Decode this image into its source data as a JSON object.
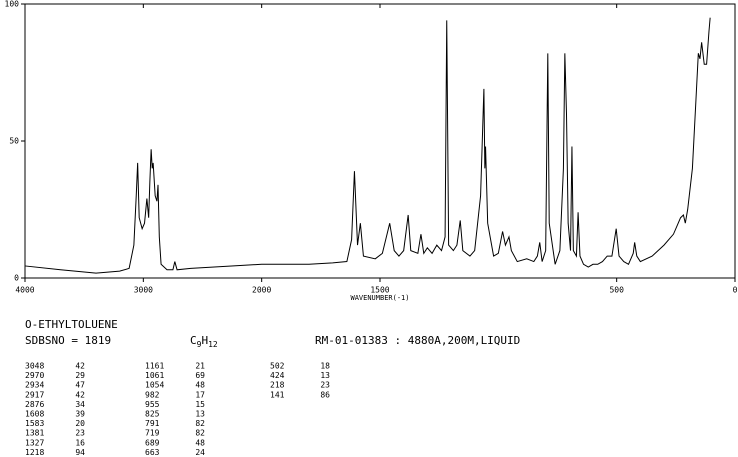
{
  "chart_data": {
    "type": "line",
    "x_label": "WAVENUMBER(-1)",
    "color": "#000000",
    "x": [
      4000,
      3700,
      3400,
      3200,
      3120,
      3080,
      3060,
      3048,
      3035,
      3010,
      2990,
      2970,
      2955,
      2945,
      2934,
      2925,
      2917,
      2900,
      2885,
      2876,
      2865,
      2850,
      2800,
      2750,
      2734,
      2715,
      2600,
      2400,
      2200,
      2000,
      1800,
      1700,
      1640,
      1620,
      1608,
      1595,
      1583,
      1570,
      1520,
      1490,
      1459,
      1440,
      1420,
      1400,
      1381,
      1370,
      1340,
      1327,
      1315,
      1300,
      1280,
      1260,
      1240,
      1225,
      1218,
      1210,
      1190,
      1175,
      1161,
      1150,
      1120,
      1100,
      1075,
      1061,
      1057,
      1054,
      1045,
      1020,
      1000,
      982,
      970,
      955,
      945,
      920,
      880,
      850,
      835,
      825,
      815,
      800,
      791,
      785,
      760,
      740,
      725,
      719,
      712,
      705,
      695,
      689,
      683,
      670,
      663,
      655,
      640,
      620,
      600,
      580,
      560,
      540,
      520,
      502,
      490,
      470,
      450,
      430,
      424,
      415,
      400,
      350,
      300,
      260,
      230,
      218,
      210,
      200,
      180,
      165,
      155,
      148,
      141,
      130,
      120,
      110,
      105
    ],
    "values": [
      4.4,
      3,
      1.8,
      2.5,
      3.5,
      12,
      30,
      42,
      22,
      18,
      20,
      29,
      22,
      35,
      47,
      40,
      42,
      30,
      28,
      34,
      15,
      5,
      3,
      3,
      6,
      3,
      3.5,
      4,
      4.5,
      5,
      5,
      5.5,
      6,
      14,
      39,
      12,
      20,
      8,
      7,
      9,
      20,
      10,
      8,
      10,
      23,
      10,
      9,
      16,
      9,
      11,
      9,
      12,
      10,
      15,
      94,
      12,
      10,
      12,
      21,
      10,
      8,
      10,
      30,
      69,
      40,
      48,
      20,
      8,
      9,
      17,
      12,
      15,
      10,
      6,
      7,
      6,
      8,
      13,
      6,
      10,
      82,
      20,
      5,
      10,
      40,
      82,
      60,
      20,
      10,
      48,
      10,
      8,
      24,
      8,
      5,
      4,
      5,
      5,
      6,
      8,
      8,
      18,
      8,
      6,
      5,
      9,
      13,
      8,
      6,
      8,
      12,
      16,
      22,
      23,
      20,
      25,
      40,
      65,
      82,
      80,
      86,
      78,
      78,
      90,
      95
    ],
    "xlim": [
      4000,
      0
    ],
    "ylim": [
      0,
      100
    ],
    "xticks": [
      4000,
      3000,
      2000,
      1500,
      500,
      0
    ],
    "yticks": [
      0,
      50,
      100
    ],
    "x_scale_change": 2000
  },
  "info": {
    "name": "O-ETHYLTOLUENE",
    "sdbs_no": "SDBSNO = 1819",
    "formula": [
      "C",
      "9",
      "H",
      "12"
    ],
    "conditions": "RM-01-01383 : 4880A,200M,LIQUID"
  },
  "peaks": [
    [
      [
        3048,
        42
      ],
      [
        2970,
        29
      ],
      [
        2934,
        47
      ],
      [
        2917,
        42
      ],
      [
        2876,
        34
      ],
      [
        1608,
        39
      ],
      [
        1583,
        20
      ],
      [
        1381,
        23
      ],
      [
        1327,
        16
      ],
      [
        1218,
        94
      ]
    ],
    [
      [
        1161,
        21
      ],
      [
        1061,
        69
      ],
      [
        1054,
        48
      ],
      [
        982,
        17
      ],
      [
        955,
        15
      ],
      [
        825,
        13
      ],
      [
        791,
        82
      ],
      [
        719,
        82
      ],
      [
        689,
        48
      ],
      [
        663,
        24
      ]
    ],
    [
      [
        502,
        18
      ],
      [
        424,
        13
      ],
      [
        218,
        23
      ],
      [
        141,
        86
      ]
    ]
  ]
}
